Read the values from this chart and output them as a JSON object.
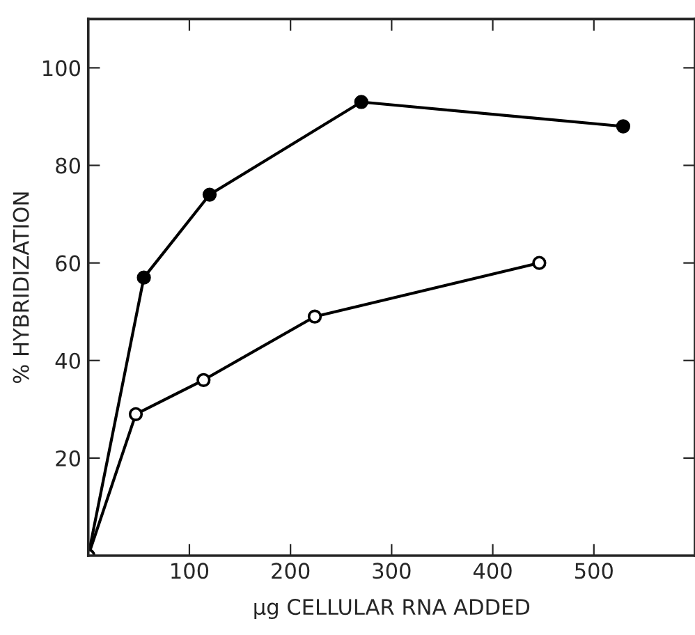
{
  "chart_data": {
    "type": "line",
    "xlabel": "μg CELLULAR RNA ADDED",
    "ylabel": "% HYBRIDIZATION",
    "xlim": [
      0,
      600
    ],
    "ylim": [
      0,
      110
    ],
    "xticks": [
      100,
      200,
      300,
      400,
      500
    ],
    "yticks": [
      20,
      40,
      60,
      80,
      100
    ],
    "grid": false,
    "legend": false,
    "line_style": "solid",
    "series": [
      {
        "color": "#000000",
        "marker": "circle",
        "x": [
          0,
          55,
          120,
          270,
          529
        ],
        "values": [
          0,
          57,
          74,
          93,
          88
        ]
      },
      {
        "color": "#000000",
        "marker": "circle",
        "x": [
          0,
          47,
          114,
          224,
          446
        ],
        "values": [
          0,
          29,
          36,
          49,
          60
        ]
      }
    ]
  }
}
